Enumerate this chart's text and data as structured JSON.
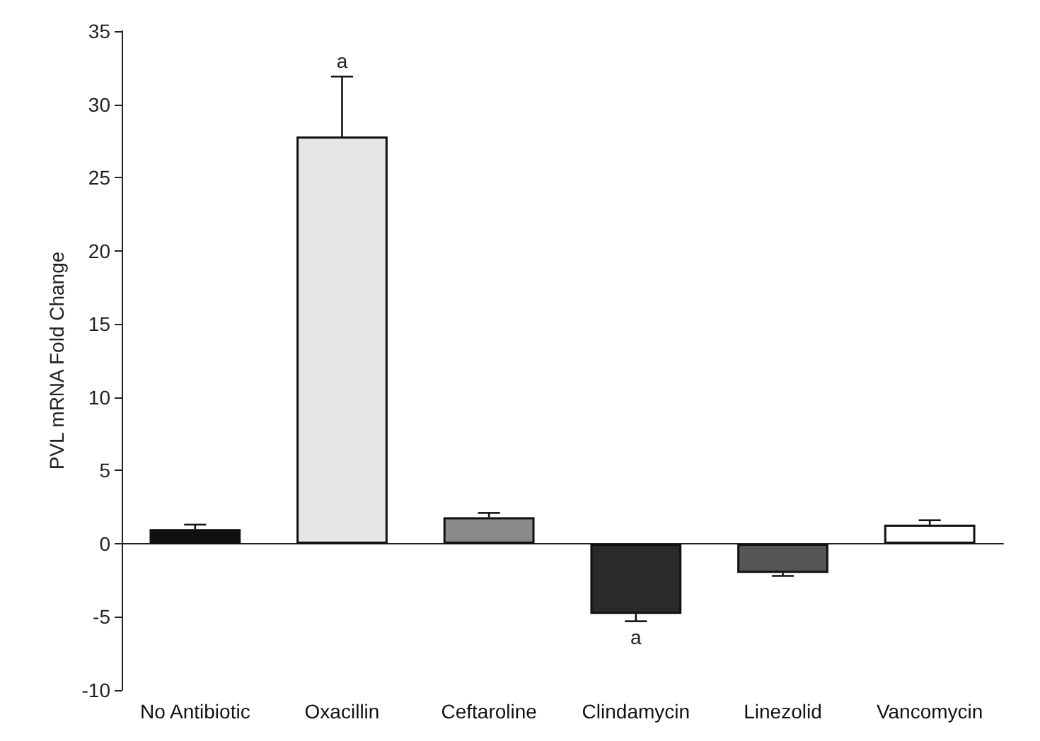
{
  "chart_data": {
    "type": "bar",
    "ylabel": "PVL mRNA Fold Change",
    "categories": [
      "No Antibiotic",
      "Oxacillin",
      "Ceftaroline",
      "Clindamycin",
      "Linezolid",
      "Vancomycin"
    ],
    "values": [
      1.0,
      27.8,
      1.8,
      -4.8,
      -2.0,
      1.3
    ],
    "errors": [
      [
        1.0,
        1.3
      ],
      [
        27.8,
        31.9
      ],
      [
        1.8,
        2.1
      ],
      [
        -5.3,
        -4.8
      ],
      [
        -2.2,
        -2.0
      ],
      [
        1.3,
        1.6
      ]
    ],
    "colors": [
      "#111111",
      "#e6e6e6",
      "#8a8a8a",
      "#2a2a2a",
      "#555555",
      "#ffffff"
    ],
    "ylim": [
      -10,
      35
    ],
    "yticks": [
      -10,
      -5,
      0,
      5,
      10,
      15,
      20,
      25,
      30,
      35
    ],
    "annotations": [
      {
        "text": "a",
        "x": "Oxacillin",
        "y": 31.9
      },
      {
        "text": "a",
        "x": "Clindamycin",
        "y": -5.3
      }
    ]
  }
}
